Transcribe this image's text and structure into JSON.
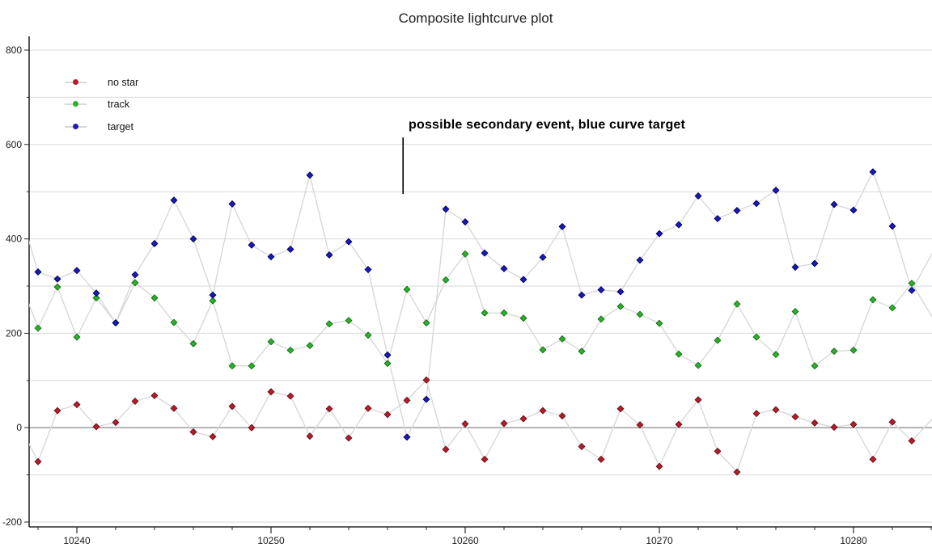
{
  "title": "Composite lightcurve plot",
  "legend": {
    "items": [
      {
        "label": "no star",
        "color": "#b41e2d"
      },
      {
        "label": "track",
        "color": "#2db22d"
      },
      {
        "label": "target",
        "color": "#1c1cb4"
      }
    ]
  },
  "annotation": {
    "text": "possible secondary event, blue curve target",
    "line_x_value": 10256.8,
    "line_v_from": 495,
    "line_v_to": 615
  },
  "chart_data": {
    "type": "line",
    "title": "Composite lightcurve plot",
    "xlabel": "",
    "ylabel": "",
    "xlim": [
      10237.5,
      10284.1
    ],
    "ylim": [
      -215,
      825
    ],
    "x_ticks_major": [
      10240,
      10250,
      10260,
      10270,
      10280
    ],
    "x_minor_tick_step": 2,
    "y_tick_labels": [
      -200,
      0,
      200,
      400,
      600,
      800
    ],
    "y_grid_step": 100,
    "grid_color": "#d9d9d9",
    "zero_line_color": "#7a7a7a",
    "axis_color": "#2a2a2a",
    "line_color": "#d8d8d8",
    "legend_position": "top-left",
    "x": [
      10238,
      10239,
      10240,
      10241,
      10242,
      10243,
      10244,
      10245,
      10246,
      10247,
      10248,
      10249,
      10250,
      10251,
      10252,
      10253,
      10254,
      10255,
      10256,
      10257,
      10258,
      10259,
      10260,
      10261,
      10262,
      10263,
      10264,
      10265,
      10266,
      10267,
      10268,
      10269,
      10270,
      10271,
      10272,
      10273,
      10274,
      10275,
      10276,
      10277,
      10278,
      10279,
      10280,
      10281,
      10282,
      10283
    ],
    "series": [
      {
        "name": "no star",
        "color": "#b41e2d",
        "edge": "#6e0e1a",
        "values": [
          -72,
          36,
          49,
          2,
          11,
          56,
          68,
          41,
          -9,
          -19,
          45,
          0,
          76,
          67,
          -18,
          40,
          -22,
          41,
          28,
          58,
          101,
          -46,
          8,
          -67,
          9,
          19,
          36,
          25,
          -40,
          -67,
          40,
          6,
          -82,
          7,
          59,
          -50,
          -94,
          30,
          38,
          23,
          10,
          1,
          7,
          -67,
          12,
          -28
        ]
      },
      {
        "name": "track",
        "color": "#2db22d",
        "edge": "#157015",
        "values": [
          211,
          298,
          192,
          275,
          222,
          307,
          275,
          223,
          178,
          269,
          131,
          131,
          182,
          164,
          174,
          220,
          227,
          196,
          136,
          293,
          222,
          313,
          368,
          243,
          243,
          232,
          165,
          188,
          162,
          230,
          257,
          240,
          221,
          156,
          132,
          185,
          262,
          192,
          155,
          246,
          131,
          162,
          164,
          271,
          254,
          306
        ]
      },
      {
        "name": "target",
        "color": "#1c1cb4",
        "edge": "#00006a",
        "values": [
          330,
          315,
          333,
          285,
          222,
          324,
          390,
          482,
          400,
          281,
          474,
          387,
          362,
          378,
          535,
          366,
          394,
          335,
          154,
          -20,
          60,
          463,
          436,
          370,
          337,
          314,
          361,
          426,
          281,
          292,
          288,
          355,
          411,
          430,
          491,
          443,
          460,
          475,
          503,
          340,
          348,
          473,
          461,
          542,
          427,
          291
        ]
      }
    ],
    "edge_stubs": {
      "left": {
        "x": 10237,
        "no star": 10,
        "track": 320,
        "target": 470
      },
      "right": {
        "x": 10285,
        "no star": 60,
        "track": 170,
        "target": 440
      }
    }
  }
}
